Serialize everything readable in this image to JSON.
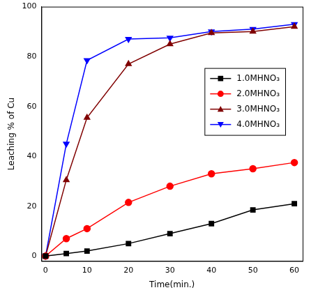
{
  "chart_data": {
    "type": "line",
    "x_label": "Time(min.)",
    "y_label": "Leaching % of Cu",
    "x": [
      0,
      5,
      10,
      20,
      30,
      40,
      50,
      60
    ],
    "series": [
      {
        "name": "1.0MHNO₃",
        "color": "#000000",
        "marker": "square",
        "values": [
          0,
          1,
          2,
          5,
          9,
          13,
          18.5,
          21
        ]
      },
      {
        "name": "2.0MHNO₃",
        "color": "#ff0000",
        "marker": "circle",
        "values": [
          0,
          7,
          11,
          21.5,
          28,
          33,
          35,
          37.5
        ]
      },
      {
        "name": "3.0MHNO₃",
        "color": "#800000",
        "marker": "triangle",
        "values": [
          0,
          30.5,
          55.5,
          77,
          85,
          89.5,
          90,
          92
        ]
      },
      {
        "name": "4.0MHNO₃",
        "color": "#0000ff",
        "marker": "triangle-down",
        "values": [
          0,
          45,
          78.5,
          87,
          87.5,
          90,
          91,
          93
        ]
      }
    ],
    "xlim": [
      -1,
      62
    ],
    "xticks": [
      0,
      10,
      20,
      30,
      40,
      50,
      60
    ],
    "ylim": [
      -2,
      100
    ],
    "yticks": [
      0,
      20,
      40,
      60,
      80,
      100
    ],
    "grid": false,
    "legend": "upper right"
  }
}
